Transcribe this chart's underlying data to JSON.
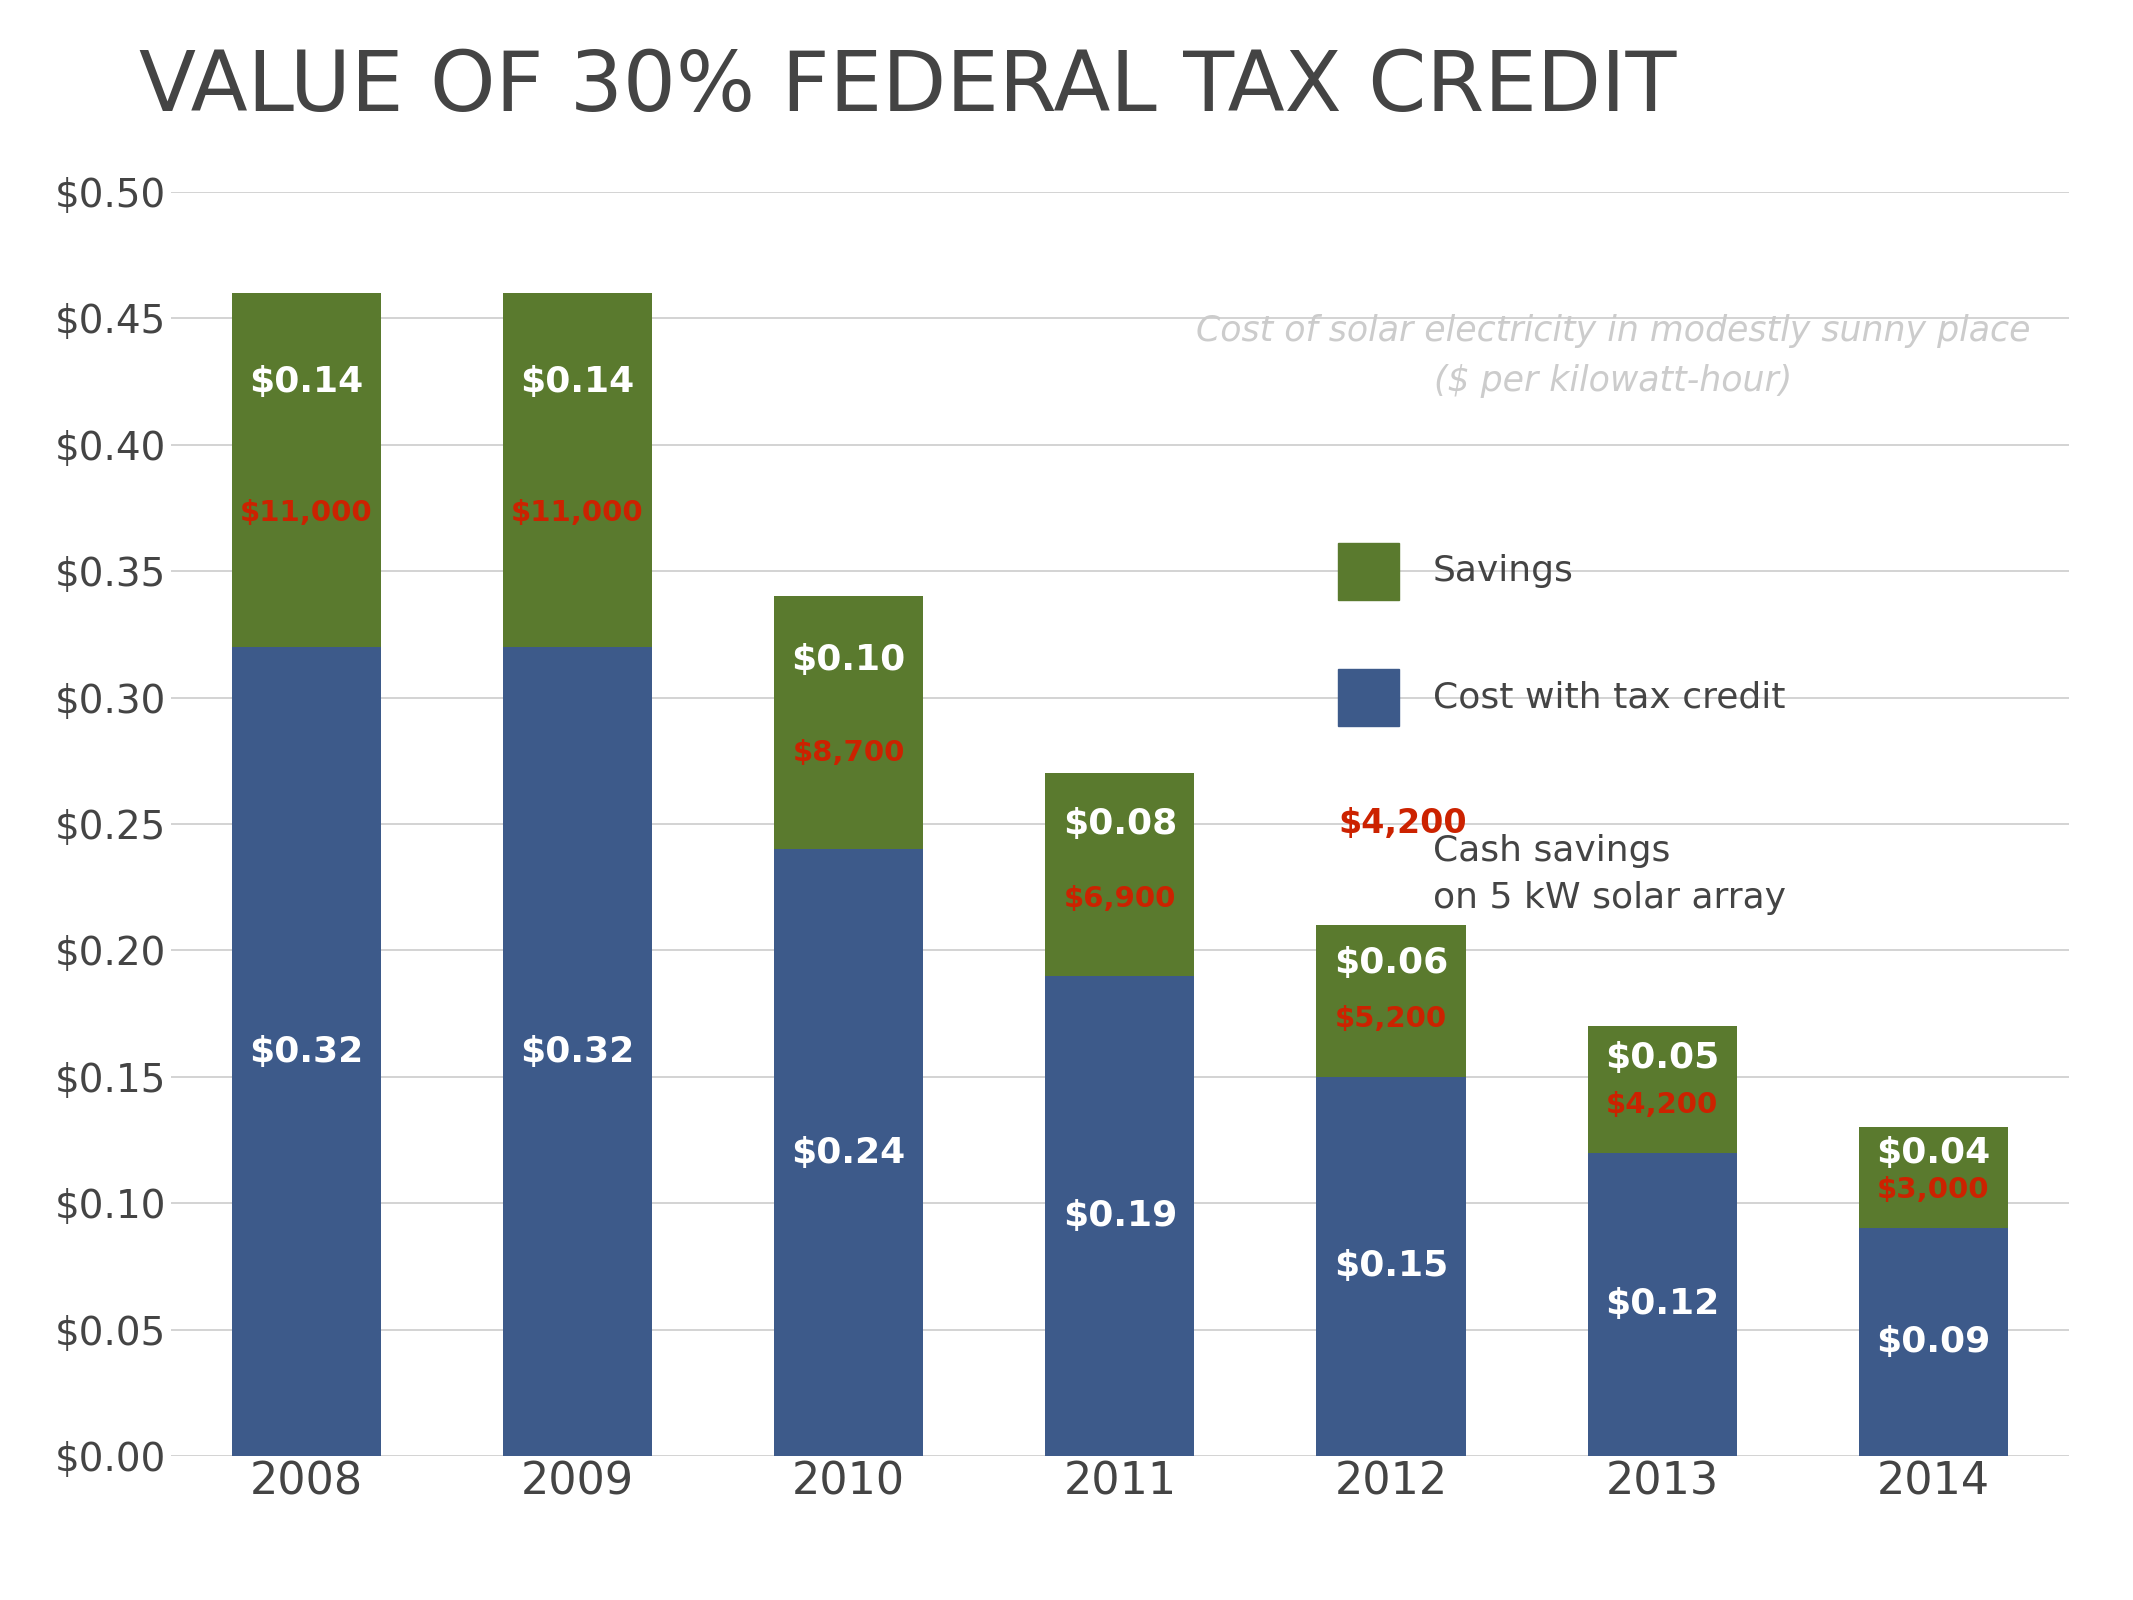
{
  "title": "VALUE OF 30% FEDERAL TAX CREDIT",
  "years": [
    "2008",
    "2009",
    "2010",
    "2011",
    "2012",
    "2013",
    "2014"
  ],
  "cost_with_credit": [
    0.32,
    0.32,
    0.24,
    0.19,
    0.15,
    0.12,
    0.09
  ],
  "savings": [
    0.14,
    0.14,
    0.1,
    0.08,
    0.06,
    0.05,
    0.04
  ],
  "cash_savings": [
    "$11,000",
    "$11,000",
    "$8,700",
    "$6,900",
    "$5,200",
    "$4,200",
    "$3,000"
  ],
  "cost_color": "#3d5a8a",
  "savings_color": "#5a7a2e",
  "cash_color": "#cc2200",
  "title_color": "#444444",
  "text_color": "#ffffff",
  "subtitle_text": "Cost of solar electricity in modestly sunny place\n($ per kilowatt-hour)",
  "subtitle_color": "#cccccc",
  "legend_savings": "Savings",
  "legend_cost": "Cost with tax credit",
  "legend_cash_red": "$4,200",
  "legend_cash_text": "Cash savings\non 5 kW solar array",
  "ylim": [
    0,
    0.5
  ],
  "yticks": [
    0.0,
    0.05,
    0.1,
    0.15,
    0.2,
    0.25,
    0.3,
    0.35,
    0.4,
    0.45,
    0.5
  ],
  "background_color": "#ffffff",
  "grid_color": "#cccccc",
  "bar_width": 0.55
}
